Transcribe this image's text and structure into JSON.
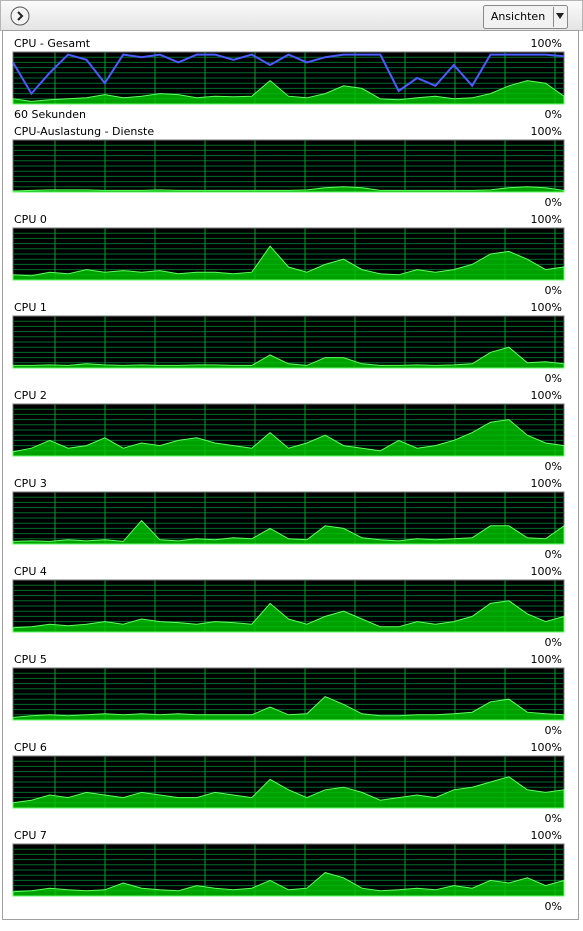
{
  "header": {
    "views_button": "Ansichten"
  },
  "chart_data": [
    {
      "type": "area",
      "title": "CPU - Gesamt",
      "xlabel": "60 Sekunden",
      "ylim": [
        0,
        100
      ],
      "yticks": [
        {
          "value": 0,
          "label": "0%"
        },
        {
          "value": 100,
          "label": "100%"
        }
      ],
      "series": [
        {
          "type": "area",
          "color": "#00c800",
          "values": [
            10,
            5,
            8,
            10,
            12,
            18,
            12,
            15,
            20,
            18,
            12,
            15,
            14,
            15,
            45,
            15,
            12,
            20,
            35,
            30,
            10,
            8,
            12,
            15,
            10,
            12,
            20,
            35,
            45,
            40,
            15
          ]
        },
        {
          "type": "line",
          "color": "#4a5cff",
          "values": [
            80,
            20,
            60,
            95,
            85,
            40,
            95,
            90,
            95,
            80,
            95,
            95,
            85,
            95,
            75,
            95,
            80,
            90,
            95,
            95,
            95,
            25,
            50,
            35,
            75,
            35,
            95,
            95,
            95,
            95,
            92
          ]
        }
      ]
    },
    {
      "type": "area",
      "title": "CPU-Auslastung - Dienste",
      "ylim": [
        0,
        100
      ],
      "yticks": [
        {
          "value": 0,
          "label": "0%"
        },
        {
          "value": 100,
          "label": "100%"
        }
      ],
      "series": [
        {
          "type": "area",
          "color": "#00c800",
          "values": [
            2,
            3,
            4,
            4,
            4,
            3,
            3,
            3,
            4,
            3,
            3,
            3,
            3,
            3,
            3,
            3,
            4,
            8,
            10,
            8,
            3,
            3,
            3,
            3,
            3,
            3,
            4,
            8,
            10,
            8,
            3
          ]
        }
      ]
    },
    {
      "type": "area",
      "title": "CPU 0",
      "ylim": [
        0,
        100
      ],
      "yticks": [
        {
          "value": 0,
          "label": "0%"
        },
        {
          "value": 100,
          "label": "100%"
        }
      ],
      "series": [
        {
          "type": "area",
          "color": "#00c800",
          "values": [
            10,
            8,
            15,
            12,
            20,
            15,
            18,
            15,
            18,
            12,
            15,
            15,
            12,
            15,
            65,
            25,
            15,
            30,
            40,
            20,
            12,
            10,
            20,
            15,
            20,
            30,
            50,
            55,
            40,
            20,
            25
          ]
        }
      ]
    },
    {
      "type": "area",
      "title": "CPU 1",
      "ylim": [
        0,
        100
      ],
      "yticks": [
        {
          "value": 0,
          "label": "0%"
        },
        {
          "value": 100,
          "label": "100%"
        }
      ],
      "series": [
        {
          "type": "area",
          "color": "#00c800",
          "values": [
            5,
            5,
            6,
            5,
            8,
            6,
            5,
            6,
            5,
            5,
            6,
            6,
            5,
            5,
            25,
            8,
            5,
            20,
            20,
            8,
            5,
            5,
            6,
            5,
            6,
            8,
            30,
            40,
            10,
            12,
            8
          ]
        }
      ]
    },
    {
      "type": "area",
      "title": "CPU 2",
      "ylim": [
        0,
        100
      ],
      "yticks": [
        {
          "value": 0,
          "label": "0%"
        },
        {
          "value": 100,
          "label": "100%"
        }
      ],
      "series": [
        {
          "type": "area",
          "color": "#00c800",
          "values": [
            8,
            15,
            30,
            15,
            20,
            35,
            15,
            25,
            20,
            30,
            35,
            25,
            20,
            15,
            45,
            15,
            25,
            40,
            20,
            15,
            10,
            30,
            15,
            20,
            30,
            45,
            65,
            70,
            40,
            25,
            20
          ]
        }
      ]
    },
    {
      "type": "area",
      "title": "CPU 3",
      "ylim": [
        0,
        100
      ],
      "yticks": [
        {
          "value": 0,
          "label": "0%"
        },
        {
          "value": 100,
          "label": "100%"
        }
      ],
      "series": [
        {
          "type": "area",
          "color": "#00c800",
          "values": [
            5,
            6,
            5,
            8,
            6,
            8,
            5,
            45,
            8,
            6,
            10,
            8,
            12,
            10,
            30,
            10,
            8,
            35,
            30,
            12,
            8,
            6,
            10,
            8,
            10,
            12,
            35,
            35,
            12,
            10,
            35
          ]
        }
      ]
    },
    {
      "type": "area",
      "title": "CPU 4",
      "ylim": [
        0,
        100
      ],
      "yticks": [
        {
          "value": 0,
          "label": "0%"
        },
        {
          "value": 100,
          "label": "100%"
        }
      ],
      "series": [
        {
          "type": "area",
          "color": "#00c800",
          "values": [
            8,
            10,
            15,
            12,
            15,
            20,
            15,
            25,
            20,
            18,
            15,
            20,
            18,
            15,
            55,
            25,
            15,
            30,
            40,
            25,
            10,
            10,
            20,
            15,
            20,
            30,
            55,
            60,
            35,
            20,
            30
          ]
        }
      ]
    },
    {
      "type": "area",
      "title": "CPU 5",
      "ylim": [
        0,
        100
      ],
      "yticks": [
        {
          "value": 0,
          "label": "0%"
        },
        {
          "value": 100,
          "label": "100%"
        }
      ],
      "series": [
        {
          "type": "area",
          "color": "#00c800",
          "values": [
            5,
            8,
            10,
            8,
            10,
            12,
            10,
            12,
            10,
            12,
            10,
            10,
            10,
            10,
            25,
            10,
            12,
            45,
            30,
            12,
            8,
            8,
            10,
            10,
            12,
            15,
            35,
            40,
            15,
            12,
            10
          ]
        }
      ]
    },
    {
      "type": "area",
      "title": "CPU 6",
      "ylim": [
        0,
        100
      ],
      "yticks": [
        {
          "value": 0,
          "label": "0%"
        },
        {
          "value": 100,
          "label": "100%"
        }
      ],
      "series": [
        {
          "type": "area",
          "color": "#00c800",
          "values": [
            10,
            15,
            25,
            20,
            30,
            25,
            20,
            30,
            25,
            20,
            20,
            30,
            25,
            20,
            55,
            35,
            20,
            35,
            40,
            30,
            15,
            20,
            25,
            20,
            35,
            40,
            50,
            60,
            35,
            30,
            35
          ]
        }
      ]
    },
    {
      "type": "area",
      "title": "CPU 7",
      "ylim": [
        0,
        100
      ],
      "yticks": [
        {
          "value": 0,
          "label": "0%"
        },
        {
          "value": 100,
          "label": "100%"
        }
      ],
      "series": [
        {
          "type": "area",
          "color": "#00c800",
          "values": [
            8,
            10,
            15,
            12,
            10,
            12,
            25,
            15,
            12,
            10,
            20,
            15,
            12,
            15,
            30,
            12,
            15,
            45,
            35,
            15,
            10,
            12,
            15,
            12,
            20,
            15,
            30,
            25,
            35,
            20,
            30
          ]
        }
      ]
    }
  ]
}
